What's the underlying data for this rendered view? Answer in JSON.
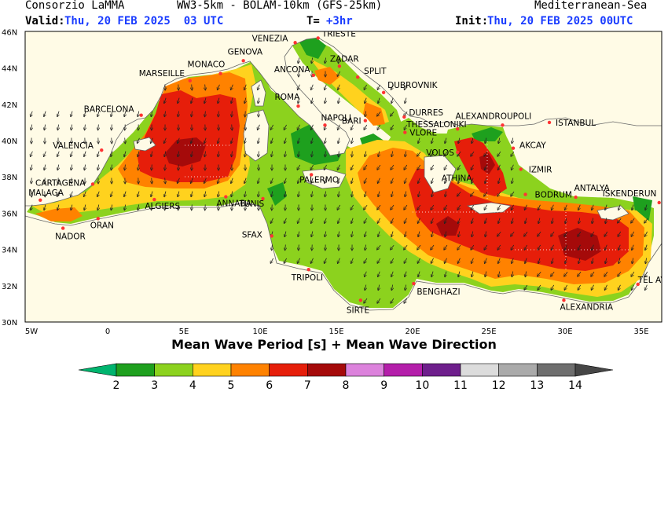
{
  "header": {
    "org": "Consorzio LaMMA",
    "model": "WW3-5km - BOLAM-10km (GFS-25km)",
    "region": "Mediterranean-Sea",
    "valid_label": "Valid:",
    "valid_value": "Thu, 20 FEB 2025  03 UTC",
    "step_label": "T=",
    "step_value": "+3hr",
    "init_label": "Init:",
    "init_value": "Thu, 20 FEB 2025 00UTC"
  },
  "map": {
    "title": "Mean Wave Period [s] + Mean Wave Direction",
    "lat_labels": [
      "46N",
      "44N",
      "42N",
      "40N",
      "38N",
      "36N",
      "34N",
      "32N",
      "30N"
    ],
    "lon_labels": [
      "5W",
      "0",
      "5E",
      "10E",
      "15E",
      "20E",
      "25E",
      "30E",
      "35E"
    ],
    "cities": [
      {
        "name": "VENEZIA",
        "lon": 12.3,
        "lat": 45.4
      },
      {
        "name": "TRIESTE",
        "lon": 13.8,
        "lat": 45.65
      },
      {
        "name": "GENOVA",
        "lon": 8.9,
        "lat": 44.4
      },
      {
        "name": "MONACO",
        "lon": 7.4,
        "lat": 43.7
      },
      {
        "name": "MARSEILLE",
        "lon": 5.4,
        "lat": 43.3
      },
      {
        "name": "ZADAR",
        "lon": 15.2,
        "lat": 44.1
      },
      {
        "name": "SPLIT",
        "lon": 16.4,
        "lat": 43.5
      },
      {
        "name": "ANCONA",
        "lon": 13.5,
        "lat": 43.6
      },
      {
        "name": "DUBROVNIK",
        "lon": 18.1,
        "lat": 42.65
      },
      {
        "name": "ROMA",
        "lon": 12.5,
        "lat": 41.9
      },
      {
        "name": "BARCELONA",
        "lon": 2.2,
        "lat": 41.4
      },
      {
        "name": "DURRES",
        "lon": 19.45,
        "lat": 41.3
      },
      {
        "name": "ALEXANDROUPOLI",
        "lon": 25.9,
        "lat": 40.85
      },
      {
        "name": "NAPOLI",
        "lon": 14.25,
        "lat": 40.85
      },
      {
        "name": "THESSALONIKI",
        "lon": 22.95,
        "lat": 40.64
      },
      {
        "name": "BARI",
        "lon": 16.9,
        "lat": 41.1
      },
      {
        "name": "ISTANBUL",
        "lon": 28.97,
        "lat": 41.0
      },
      {
        "name": "VLORE",
        "lon": 19.5,
        "lat": 40.45
      },
      {
        "name": "VALENCIA",
        "lon": -0.4,
        "lat": 39.47
      },
      {
        "name": "VOLOS",
        "lon": 22.95,
        "lat": 39.36
      },
      {
        "name": "AKCAY",
        "lon": 26.6,
        "lat": 39.58
      },
      {
        "name": "IZMIR",
        "lon": 27.1,
        "lat": 38.42
      },
      {
        "name": "ATHINA",
        "lon": 23.7,
        "lat": 37.95
      },
      {
        "name": "PALERMO",
        "lon": 13.36,
        "lat": 38.12
      },
      {
        "name": "CARTAGENA",
        "lon": -0.98,
        "lat": 37.6
      },
      {
        "name": "BODRUM",
        "lon": 27.4,
        "lat": 37.03
      },
      {
        "name": "MALAGA",
        "lon": -4.42,
        "lat": 36.72
      },
      {
        "name": "ANTALYA",
        "lon": 30.7,
        "lat": 36.88
      },
      {
        "name": "ISKENDERUN",
        "lon": 36.17,
        "lat": 36.58
      },
      {
        "name": "TUNIS",
        "lon": 10.18,
        "lat": 36.8
      },
      {
        "name": "ALGIERS",
        "lon": 3.06,
        "lat": 36.75
      },
      {
        "name": "ANNABA",
        "lon": 7.75,
        "lat": 36.9
      },
      {
        "name": "ORAN",
        "lon": -0.63,
        "lat": 35.7
      },
      {
        "name": "NADOR",
        "lon": -2.93,
        "lat": 35.17
      },
      {
        "name": "SFAX",
        "lon": 10.76,
        "lat": 34.74
      },
      {
        "name": "TEL AVIV",
        "lon": 34.78,
        "lat": 32.08
      },
      {
        "name": "TRIPOLI",
        "lon": 13.18,
        "lat": 32.89
      },
      {
        "name": "BENGHAZI",
        "lon": 20.07,
        "lat": 32.12
      },
      {
        "name": "SIRTE",
        "lon": 16.59,
        "lat": 31.2
      },
      {
        "name": "ALEXANDRIA",
        "lon": 29.92,
        "lat": 31.2
      }
    ]
  },
  "colorbar": {
    "labels": [
      "2",
      "3",
      "4",
      "5",
      "6",
      "7",
      "8",
      "9",
      "10",
      "11",
      "12",
      "13",
      "14"
    ],
    "colors": [
      "#00b46e",
      "#1ea01e",
      "#8cd21e",
      "#ffd21e",
      "#ff8200",
      "#e61e0a",
      "#a50a0a",
      "#dc82dc",
      "#b41eaa",
      "#6e1e8c",
      "#dcdcdc",
      "#aaaaaa",
      "#6e6e6e",
      "#464646"
    ]
  },
  "colors": {
    "land": "#fffbe6",
    "border": "#909090",
    "city_dot": "#ff3333",
    "header_blue": "#1a3cff"
  }
}
